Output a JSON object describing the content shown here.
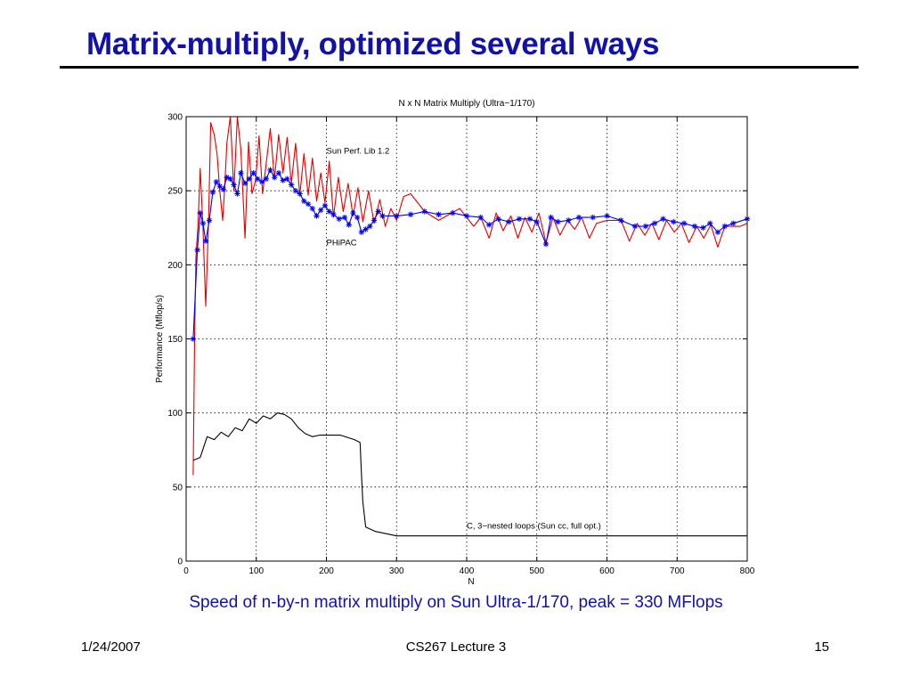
{
  "slide": {
    "title": "Matrix-multiply, optimized several ways",
    "caption": "Speed of n-by-n matrix multiply on Sun Ultra-1/170, peak = 330 MFlops"
  },
  "footer": {
    "date": "1/24/2007",
    "course": "CS267 Lecture 3",
    "page": "15"
  },
  "colors": {
    "title": "#1212a8",
    "sun_perf_lib": "#e00000",
    "phipac": "#0000ee",
    "naive_c": "#000000"
  },
  "chart_data": {
    "type": "line",
    "title": "N x N Matrix Multiply (Ultra−1/170)",
    "xlabel": "N",
    "ylabel": "Performance (Mflop/s)",
    "xlim": [
      0,
      800
    ],
    "ylim": [
      0,
      300
    ],
    "x_ticks": [
      "0",
      "100",
      "200",
      "300",
      "400",
      "500",
      "600",
      "700",
      "800"
    ],
    "y_ticks": [
      "0",
      "50",
      "100",
      "150",
      "200",
      "250",
      "300"
    ],
    "grid": true,
    "annotations": [
      {
        "text": "Sun Perf. Lib 1.2",
        "x": 200,
        "y": 275
      },
      {
        "text": "PHiPAC",
        "x": 200,
        "y": 213
      },
      {
        "text": "C, 3−nested loops (Sun cc, full opt.)",
        "x": 400,
        "y": 22
      }
    ],
    "series": [
      {
        "name": "Sun Perf. Lib 1.2",
        "color": "#e00000",
        "marker": "none",
        "points": [
          [
            10,
            58
          ],
          [
            12,
            150
          ],
          [
            14,
            205
          ],
          [
            17,
            228
          ],
          [
            20,
            265
          ],
          [
            24,
            225
          ],
          [
            28,
            172
          ],
          [
            32,
            230
          ],
          [
            35,
            296
          ],
          [
            40,
            288
          ],
          [
            44,
            275
          ],
          [
            48,
            250
          ],
          [
            52,
            230
          ],
          [
            55,
            252
          ],
          [
            58,
            282
          ],
          [
            63,
            300
          ],
          [
            68,
            250
          ],
          [
            73,
            300
          ],
          [
            78,
            278
          ],
          [
            84,
            218
          ],
          [
            89,
            283
          ],
          [
            94,
            248
          ],
          [
            99,
            257
          ],
          [
            104,
            287
          ],
          [
            109,
            248
          ],
          [
            115,
            272
          ],
          [
            120,
            292
          ],
          [
            126,
            258
          ],
          [
            132,
            288
          ],
          [
            138,
            262
          ],
          [
            144,
            286
          ],
          [
            150,
            255
          ],
          [
            156,
            282
          ],
          [
            162,
            247
          ],
          [
            168,
            275
          ],
          [
            174,
            247
          ],
          [
            180,
            272
          ],
          [
            186,
            243
          ],
          [
            192,
            262
          ],
          [
            198,
            242
          ],
          [
            204,
            270
          ],
          [
            210,
            232
          ],
          [
            217,
            259
          ],
          [
            224,
            236
          ],
          [
            231,
            255
          ],
          [
            238,
            233
          ],
          [
            245,
            252
          ],
          [
            252,
            229
          ],
          [
            260,
            250
          ],
          [
            268,
            228
          ],
          [
            276,
            244
          ],
          [
            284,
            226
          ],
          [
            292,
            238
          ],
          [
            300,
            230
          ],
          [
            310,
            246
          ],
          [
            320,
            248
          ],
          [
            340,
            236
          ],
          [
            360,
            230
          ],
          [
            390,
            238
          ],
          [
            410,
            226
          ],
          [
            420,
            232
          ],
          [
            432,
            218
          ],
          [
            442,
            235
          ],
          [
            452,
            223
          ],
          [
            463,
            233
          ],
          [
            473,
            218
          ],
          [
            483,
            232
          ],
          [
            493,
            222
          ],
          [
            503,
            235
          ],
          [
            513,
            215
          ],
          [
            523,
            232
          ],
          [
            533,
            220
          ],
          [
            544,
            230
          ],
          [
            554,
            224
          ],
          [
            564,
            232
          ],
          [
            575,
            218
          ],
          [
            585,
            228
          ],
          [
            600,
            230
          ],
          [
            620,
            230
          ],
          [
            632,
            216
          ],
          [
            643,
            228
          ],
          [
            654,
            220
          ],
          [
            664,
            228
          ],
          [
            674,
            217
          ],
          [
            685,
            230
          ],
          [
            696,
            222
          ],
          [
            706,
            228
          ],
          [
            717,
            215
          ],
          [
            728,
            226
          ],
          [
            738,
            218
          ],
          [
            748,
            227
          ],
          [
            758,
            212
          ],
          [
            768,
            226
          ],
          [
            790,
            226
          ],
          [
            800,
            228
          ]
        ]
      },
      {
        "name": "PHiPAC",
        "color": "#0000ee",
        "marker": "*",
        "points": [
          [
            10,
            150
          ],
          [
            16,
            210
          ],
          [
            20,
            235
          ],
          [
            24,
            228
          ],
          [
            28,
            216
          ],
          [
            33,
            230
          ],
          [
            38,
            249
          ],
          [
            43,
            256
          ],
          [
            48,
            253
          ],
          [
            53,
            251
          ],
          [
            58,
            259
          ],
          [
            63,
            258
          ],
          [
            68,
            254
          ],
          [
            73,
            248
          ],
          [
            78,
            262
          ],
          [
            84,
            255
          ],
          [
            90,
            258
          ],
          [
            96,
            262
          ],
          [
            102,
            258
          ],
          [
            108,
            256
          ],
          [
            114,
            258
          ],
          [
            120,
            264
          ],
          [
            126,
            259
          ],
          [
            132,
            262
          ],
          [
            138,
            257
          ],
          [
            144,
            258
          ],
          [
            150,
            254
          ],
          [
            156,
            250
          ],
          [
            162,
            248
          ],
          [
            168,
            243
          ],
          [
            174,
            241
          ],
          [
            180,
            238
          ],
          [
            186,
            233
          ],
          [
            192,
            237
          ],
          [
            198,
            240
          ],
          [
            204,
            236
          ],
          [
            210,
            234
          ],
          [
            218,
            231
          ],
          [
            226,
            232
          ],
          [
            232,
            227
          ],
          [
            238,
            235
          ],
          [
            244,
            232
          ],
          [
            250,
            222
          ],
          [
            256,
            224
          ],
          [
            262,
            226
          ],
          [
            268,
            230
          ],
          [
            274,
            236
          ],
          [
            280,
            233
          ],
          [
            300,
            233
          ],
          [
            320,
            234
          ],
          [
            340,
            236
          ],
          [
            360,
            234
          ],
          [
            380,
            235
          ],
          [
            400,
            233
          ],
          [
            420,
            232
          ],
          [
            432,
            227
          ],
          [
            445,
            231
          ],
          [
            460,
            229
          ],
          [
            475,
            231
          ],
          [
            490,
            231
          ],
          [
            500,
            229
          ],
          [
            513,
            214
          ],
          [
            520,
            232
          ],
          [
            530,
            229
          ],
          [
            545,
            230
          ],
          [
            560,
            232
          ],
          [
            580,
            232
          ],
          [
            600,
            233
          ],
          [
            620,
            230
          ],
          [
            640,
            226
          ],
          [
            655,
            226
          ],
          [
            668,
            228
          ],
          [
            680,
            231
          ],
          [
            695,
            229
          ],
          [
            710,
            228
          ],
          [
            725,
            226
          ],
          [
            737,
            225
          ],
          [
            747,
            228
          ],
          [
            758,
            222
          ],
          [
            768,
            226
          ],
          [
            780,
            228
          ],
          [
            800,
            231
          ]
        ]
      },
      {
        "name": "C, 3-nested loops (Sun cc, full opt.)",
        "color": "#000000",
        "marker": "none",
        "points": [
          [
            10,
            68
          ],
          [
            20,
            70
          ],
          [
            30,
            84
          ],
          [
            40,
            82
          ],
          [
            50,
            87
          ],
          [
            60,
            84
          ],
          [
            70,
            90
          ],
          [
            80,
            88
          ],
          [
            90,
            96
          ],
          [
            100,
            93
          ],
          [
            110,
            98
          ],
          [
            120,
            96
          ],
          [
            130,
            100
          ],
          [
            140,
            99
          ],
          [
            150,
            96
          ],
          [
            160,
            90
          ],
          [
            170,
            86
          ],
          [
            180,
            84
          ],
          [
            190,
            85
          ],
          [
            200,
            85
          ],
          [
            220,
            85
          ],
          [
            240,
            82
          ],
          [
            248,
            80
          ],
          [
            250,
            58
          ],
          [
            252,
            40
          ],
          [
            256,
            23
          ],
          [
            270,
            20
          ],
          [
            300,
            17
          ],
          [
            350,
            17
          ],
          [
            400,
            17
          ],
          [
            500,
            17
          ],
          [
            600,
            17
          ],
          [
            700,
            17
          ],
          [
            800,
            17
          ]
        ]
      }
    ]
  }
}
